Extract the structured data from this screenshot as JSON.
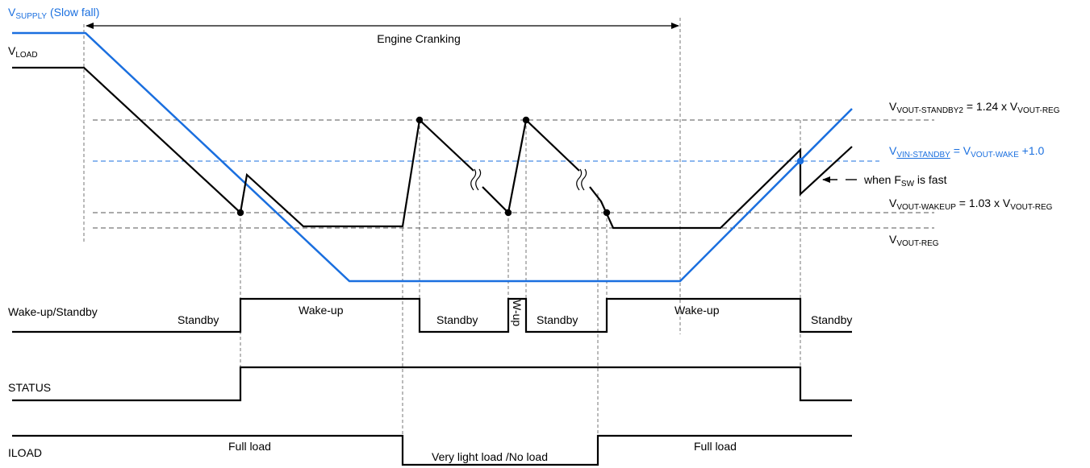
{
  "colors": {
    "supply": "#1a6fdf",
    "load": "#000000",
    "grid": "#555555"
  },
  "icons": {
    "break_mark": "squiggle-break-icon",
    "event_point": "filled-dot-icon",
    "arrow": "arrowhead-icon"
  },
  "signals": {
    "supply": {
      "main": "V",
      "sub": "SUPPLY",
      "suffix": " (Slow fall)"
    },
    "load": {
      "main": "V",
      "sub": "LOAD"
    }
  },
  "cranking": {
    "label": "Engine Cranking"
  },
  "thresholds": {
    "standby2": {
      "v": "V",
      "sub": "VOUT-STANDBY2",
      "mid": " = 1.24 x V",
      "sub2": "VOUT-REG"
    },
    "vin_standby": {
      "v": "V",
      "sub": "VIN-STANDBY",
      "mid": " = V",
      "sub2": "VOUT-WAKE",
      "tail": " +1.0"
    },
    "wakeup": {
      "v": "V",
      "sub": "VOUT-WAKEUP",
      "mid": " = 1.03 x V",
      "sub2": "VOUT-REG"
    },
    "reg": {
      "v": "V",
      "sub": "VOUT-REG"
    }
  },
  "note": {
    "prefix": "when F",
    "sub": "SW",
    "suffix": " is fast"
  },
  "rows": {
    "wake_standby": {
      "label": "Wake-up/Standby",
      "states": [
        "Standby",
        "Wake-up",
        "Standby",
        "W-up",
        "Standby",
        "Wake-up",
        "Standby"
      ]
    },
    "status": {
      "label": "STATUS"
    },
    "iload": {
      "label": "ILOAD",
      "states": [
        "Full load",
        "Very light load /No load",
        "Full load"
      ]
    }
  }
}
